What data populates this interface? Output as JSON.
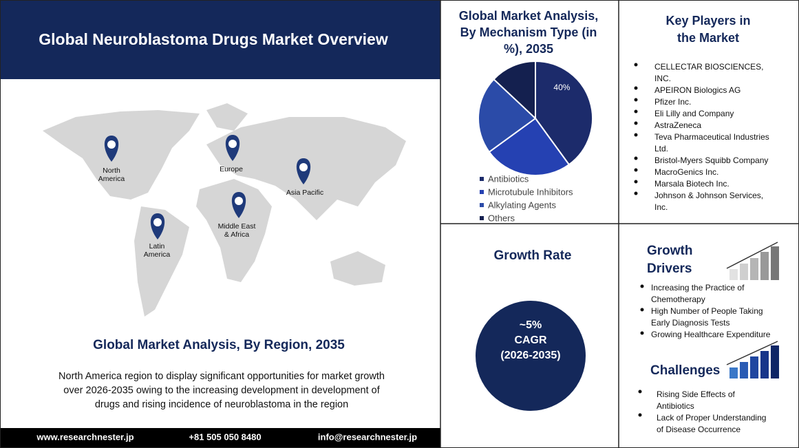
{
  "header": {
    "title": "Global Neuroblastoma Drugs Market Overview"
  },
  "map": {
    "regions": [
      [
        "North",
        "America"
      ],
      [
        "Europe"
      ],
      [
        "Asia Pacific"
      ],
      [
        "Middle East",
        "& Africa"
      ],
      [
        "Latin",
        "America"
      ]
    ]
  },
  "region_section": {
    "title": "Global Market Analysis, By Region, 2035",
    "text": [
      "North America region to display significant opportunities for market growth",
      "over   2026-2035  owing to the increasing development in development  of",
      "drugs and rising incidence of neuroblastoma in the region"
    ]
  },
  "footer": {
    "website": "www.researchnester.jp",
    "phone": "+81 505 050 8480",
    "email": "info@researchnester.jp"
  },
  "chart_data": {
    "type": "pie",
    "title": [
      "Global Market Analysis,",
      "By Mechanism Type (in",
      "%), 2035"
    ],
    "categories": [
      "Antibiotics",
      "Microtubule Inhibitors",
      "Alkylating Agents",
      "Others"
    ],
    "values": [
      40,
      25,
      22,
      13
    ],
    "value_labels": [
      "40%",
      null,
      null,
      null
    ],
    "colors": [
      "#1c2b6b",
      "#2541b2",
      "#2b4ba8",
      "#14204f"
    ]
  },
  "key_players": {
    "title": [
      "Key Players in",
      "the Market"
    ],
    "items": [
      [
        "CELLECTAR BIOSCIENCES,",
        "INC."
      ],
      [
        "APEIRON Biologics AG"
      ],
      [
        "Pfizer Inc."
      ],
      [
        "Eli Lilly and Company"
      ],
      [
        "AstraZeneca"
      ],
      [
        "Teva Pharmaceutical Industries",
        "Ltd."
      ],
      [
        "Bristol-Myers Squibb Company"
      ],
      [
        "MacroGenics Inc."
      ],
      [
        "Marsala Biotech Inc."
      ],
      [
        "Johnson & Johnson Services,",
        "Inc."
      ]
    ]
  },
  "growth_rate": {
    "title": "Growth Rate",
    "circle": [
      "~5%",
      "CAGR",
      "(2026-2035)"
    ]
  },
  "growth_drivers": {
    "title": [
      "Growth",
      "Drivers"
    ],
    "items": [
      [
        "Increasing the Practice of",
        "Chemotherapy"
      ],
      [
        "High Number of People Taking",
        "Early Diagnosis Tests"
      ],
      [
        "Growing Healthcare Expenditure"
      ]
    ]
  },
  "challenges": {
    "title": "Challenges",
    "items": [
      [
        "Rising Side Effects of",
        "Antibiotics"
      ],
      [
        "Lack of Proper Understanding",
        "of Disease Occurrence"
      ]
    ]
  }
}
